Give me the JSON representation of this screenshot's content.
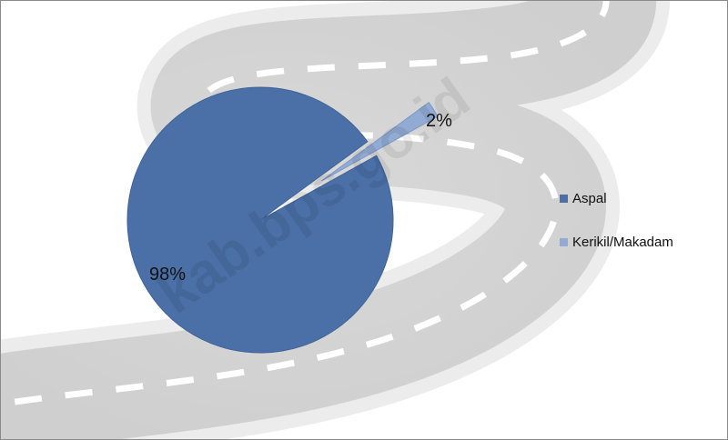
{
  "watermark": "kab.bps.go.id",
  "chart_data": {
    "type": "pie",
    "categories": [
      "Aspal",
      "Kerikil/Makadam"
    ],
    "values": [
      98,
      2
    ],
    "data_labels": [
      "98%",
      "2%"
    ],
    "legend_position": "right",
    "colors": [
      "#4a70a7",
      "#91abd4"
    ],
    "background": "winding road illustration"
  }
}
